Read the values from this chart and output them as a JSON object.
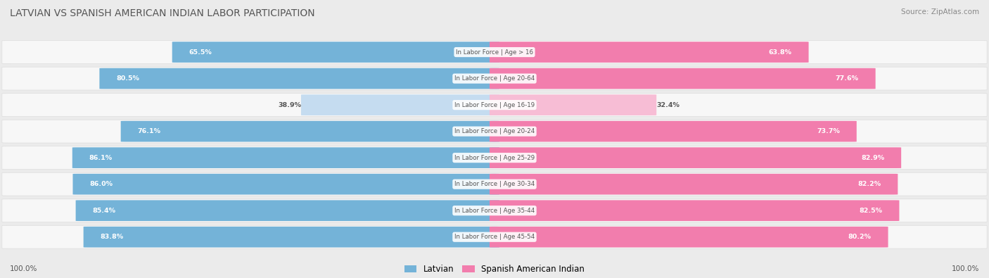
{
  "title": "LATVIAN VS SPANISH AMERICAN INDIAN LABOR PARTICIPATION",
  "source": "Source: ZipAtlas.com",
  "categories": [
    "In Labor Force | Age > 16",
    "In Labor Force | Age 20-64",
    "In Labor Force | Age 16-19",
    "In Labor Force | Age 20-24",
    "In Labor Force | Age 25-29",
    "In Labor Force | Age 30-34",
    "In Labor Force | Age 35-44",
    "In Labor Force | Age 45-54"
  ],
  "latvian_values": [
    65.5,
    80.5,
    38.9,
    76.1,
    86.1,
    86.0,
    85.4,
    83.8
  ],
  "spanish_values": [
    63.8,
    77.6,
    32.4,
    73.7,
    82.9,
    82.2,
    82.5,
    80.2
  ],
  "latvian_color_full": "#74B3D8",
  "latvian_color_light": "#C5DCF0",
  "spanish_color_full": "#F27DAD",
  "spanish_color_light": "#F7BDD5",
  "bg_color": "#EBEBEB",
  "row_bg_color": "#F7F7F7",
  "label_white": "#FFFFFF",
  "label_dark": "#555555",
  "center_label_color": "#555555",
  "max_val": 100.0,
  "light_threshold": 50.0,
  "legend_latvian": "Latvian",
  "legend_spanish": "Spanish American Indian",
  "bottom_left": "100.0%",
  "bottom_right": "100.0%",
  "title_color": "#555555",
  "source_color": "#888888"
}
